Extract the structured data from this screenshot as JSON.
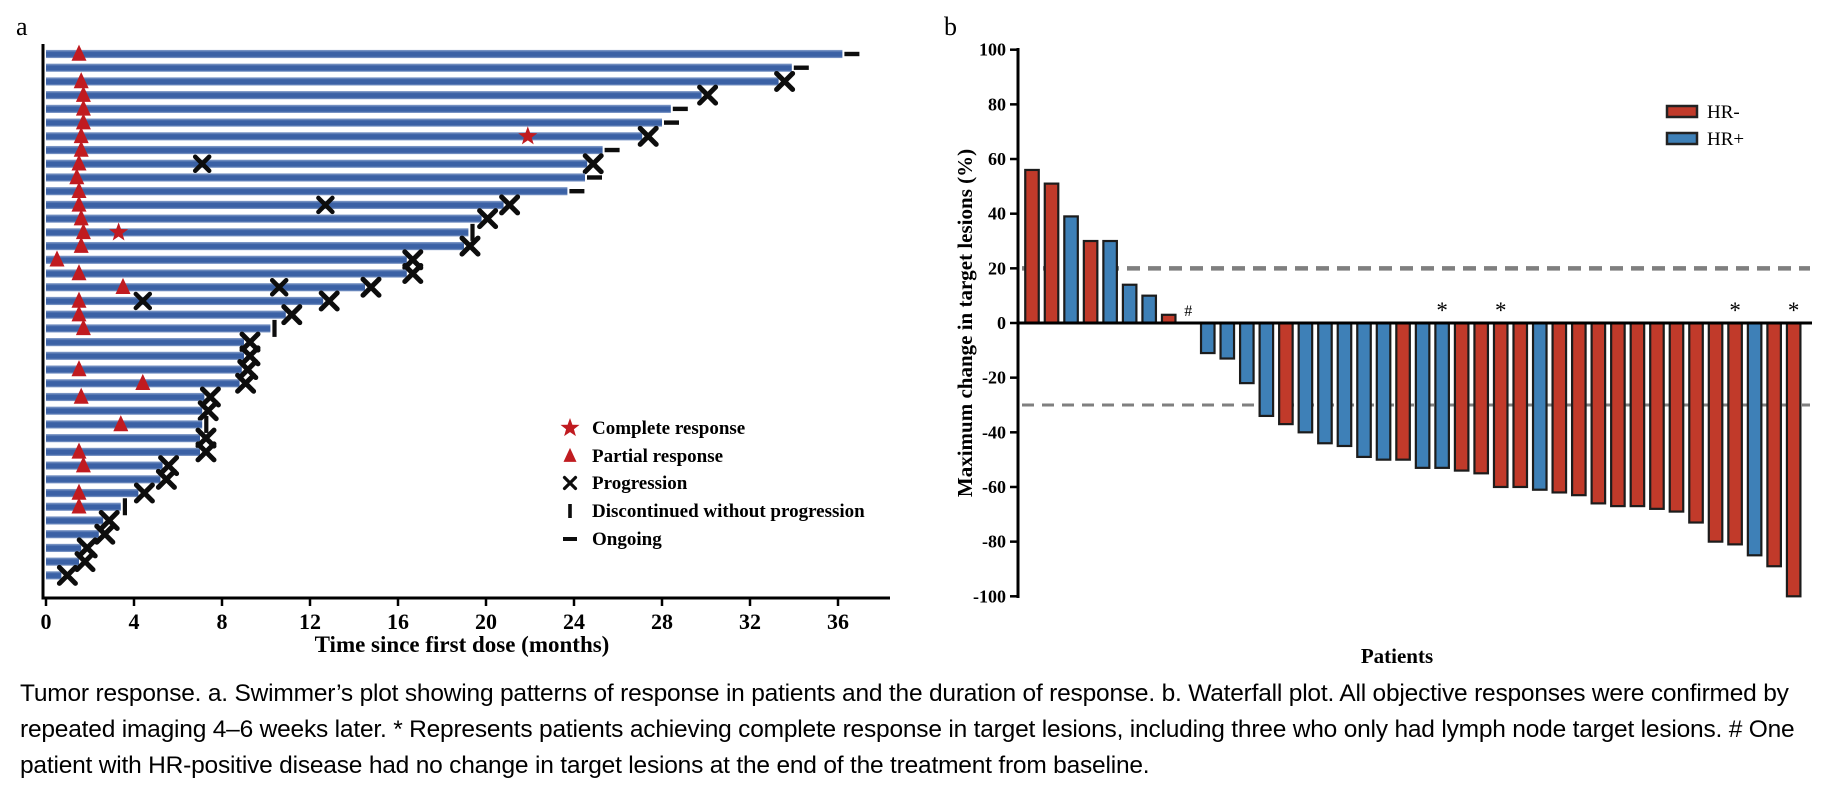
{
  "figure": {
    "panel_a_label": "a",
    "panel_b_label": "b",
    "caption": "Tumor response. a. Swimmer’s plot showing patterns of response in patients and the duration of response. b. Waterfall plot. All objective responses were confirmed by repeated imaging 4–6 weeks later. * Represents patients achieving complete response in target lesions, including three who only had lymph node target lesions. # One patient with HR-positive disease had no change in target lesions at the end of the treatment from baseline."
  },
  "colors": {
    "swimmer_bar_blue": "#3b61a5",
    "swimmer_bar_edge": "#8aa2cc",
    "marker_red": "#c01b20",
    "marker_black": "#0d0d0d",
    "hr_negative_red": "#c13a2a",
    "hr_positive_blue": "#3e80b7",
    "bar_outline": "#1c1c1c",
    "dashed_gray": "#7f7f7f",
    "axis_black": "#000000"
  },
  "chart_data": [
    {
      "type": "bar",
      "name": "swimmer-plot",
      "orientation": "horizontal",
      "xlabel": "Time since first dose (months)",
      "xlim": [
        0,
        38.4
      ],
      "xticks": [
        0,
        4,
        8,
        12,
        16,
        20,
        24,
        28,
        32,
        36
      ],
      "legend_position": "right-middle",
      "legend": [
        {
          "marker": "star",
          "label": "Complete response"
        },
        {
          "marker": "triangle",
          "label": "Partial response"
        },
        {
          "marker": "x",
          "label": "Progression"
        },
        {
          "marker": "vbar",
          "label": "Discontinued without progression"
        },
        {
          "marker": "dash",
          "label": "Ongoing"
        }
      ],
      "patients": [
        {
          "duration": 36.2,
          "end": "ongoing",
          "pr": 1.5
        },
        {
          "duration": 33.9,
          "end": "ongoing"
        },
        {
          "duration": 33.3,
          "end": "progression",
          "pr": 1.6
        },
        {
          "duration": 29.8,
          "end": "progression",
          "pr": 1.7
        },
        {
          "duration": 28.4,
          "end": "ongoing",
          "pr": 1.7
        },
        {
          "duration": 28.0,
          "end": "ongoing",
          "pr": 1.7
        },
        {
          "duration": 27.1,
          "end": "progression",
          "pr": 1.6,
          "cr": 21.9
        },
        {
          "duration": 25.3,
          "end": "ongoing",
          "pr": 1.6
        },
        {
          "duration": 24.6,
          "end": "progression",
          "pr": 1.5,
          "mid_progression": 7.1
        },
        {
          "duration": 24.5,
          "end": "ongoing",
          "pr": 1.4
        },
        {
          "duration": 23.7,
          "end": "ongoing",
          "pr": 1.5
        },
        {
          "duration": 20.8,
          "end": "progression",
          "pr": 1.5,
          "mid_progression": 12.7
        },
        {
          "duration": 19.8,
          "end": "progression",
          "pr": 1.6
        },
        {
          "duration": 19.2,
          "end": "discontinued",
          "pr": 1.7,
          "cr": 3.3
        },
        {
          "duration": 19.0,
          "end": "progression",
          "pr": 1.6
        },
        {
          "duration": 16.4,
          "end": "progression",
          "pr": 0.5
        },
        {
          "duration": 16.4,
          "end": "progression",
          "pr": 1.5
        },
        {
          "duration": 14.5,
          "end": "progression",
          "pr": 3.5,
          "mid_progression": 10.6
        },
        {
          "duration": 12.6,
          "end": "progression",
          "pr": 1.5,
          "mid_progression": 4.4
        },
        {
          "duration": 10.9,
          "end": "progression",
          "pr": 1.5
        },
        {
          "duration": 10.2,
          "end": "discontinued",
          "pr": 1.7
        },
        {
          "duration": 9.0,
          "end": "progression"
        },
        {
          "duration": 9.0,
          "end": "progression"
        },
        {
          "duration": 8.9,
          "end": "progression",
          "pr": 1.5
        },
        {
          "duration": 8.8,
          "end": "progression",
          "pr": 4.4
        },
        {
          "duration": 7.2,
          "end": "progression",
          "pr": 1.6
        },
        {
          "duration": 7.1,
          "end": "progression"
        },
        {
          "duration": 7.1,
          "end": "discontinued",
          "pr": 3.4
        },
        {
          "duration": 7.0,
          "end": "progression"
        },
        {
          "duration": 7.0,
          "end": "progression",
          "pr": 1.5
        },
        {
          "duration": 5.3,
          "end": "progression",
          "pr": 1.7
        },
        {
          "duration": 5.2,
          "end": "progression"
        },
        {
          "duration": 4.2,
          "end": "progression",
          "pr": 1.5
        },
        {
          "duration": 3.4,
          "end": "discontinued",
          "pr": 1.5
        },
        {
          "duration": 2.6,
          "end": "progression"
        },
        {
          "duration": 2.4,
          "end": "progression"
        },
        {
          "duration": 1.6,
          "end": "progression"
        },
        {
          "duration": 1.5,
          "end": "progression"
        },
        {
          "duration": 0.7,
          "end": "progression"
        }
      ]
    },
    {
      "type": "bar",
      "name": "waterfall-plot",
      "ylabel": "Maximum change in target lesions (%)",
      "xlabel": "Patients",
      "ylim": [
        -100,
        100
      ],
      "yticks": [
        100,
        80,
        60,
        40,
        20,
        0,
        -20,
        -40,
        -60,
        -80,
        -100
      ],
      "reference_lines": [
        20,
        -30
      ],
      "legend": [
        {
          "label": "HR-",
          "color": "#c13a2a"
        },
        {
          "label": "HR+",
          "color": "#3e80b7"
        }
      ],
      "patients": [
        {
          "value": 56,
          "group": "HR-"
        },
        {
          "value": 51,
          "group": "HR-"
        },
        {
          "value": 39,
          "group": "HR+"
        },
        {
          "value": 30,
          "group": "HR-"
        },
        {
          "value": 30,
          "group": "HR+"
        },
        {
          "value": 14,
          "group": "HR+"
        },
        {
          "value": 10,
          "group": "HR+"
        },
        {
          "value": 3,
          "group": "HR-"
        },
        {
          "value": 0,
          "group": "HR+",
          "annotation": "#"
        },
        {
          "value": -11,
          "group": "HR+"
        },
        {
          "value": -13,
          "group": "HR+"
        },
        {
          "value": -22,
          "group": "HR+"
        },
        {
          "value": -34,
          "group": "HR+"
        },
        {
          "value": -37,
          "group": "HR-"
        },
        {
          "value": -40,
          "group": "HR+"
        },
        {
          "value": -44,
          "group": "HR+"
        },
        {
          "value": -45,
          "group": "HR+"
        },
        {
          "value": -49,
          "group": "HR+"
        },
        {
          "value": -50,
          "group": "HR+"
        },
        {
          "value": -50,
          "group": "HR-"
        },
        {
          "value": -53,
          "group": "HR+"
        },
        {
          "value": -53,
          "group": "HR+",
          "annotation": "*"
        },
        {
          "value": -54,
          "group": "HR-"
        },
        {
          "value": -55,
          "group": "HR-"
        },
        {
          "value": -60,
          "group": "HR-",
          "annotation": "*"
        },
        {
          "value": -60,
          "group": "HR-"
        },
        {
          "value": -61,
          "group": "HR+"
        },
        {
          "value": -62,
          "group": "HR-"
        },
        {
          "value": -63,
          "group": "HR-"
        },
        {
          "value": -66,
          "group": "HR-"
        },
        {
          "value": -67,
          "group": "HR-"
        },
        {
          "value": -67,
          "group": "HR-"
        },
        {
          "value": -68,
          "group": "HR-"
        },
        {
          "value": -69,
          "group": "HR-"
        },
        {
          "value": -73,
          "group": "HR-"
        },
        {
          "value": -80,
          "group": "HR-"
        },
        {
          "value": -81,
          "group": "HR-",
          "annotation": "*"
        },
        {
          "value": -85,
          "group": "HR+"
        },
        {
          "value": -89,
          "group": "HR-"
        },
        {
          "value": -100,
          "group": "HR-",
          "annotation": "*"
        }
      ]
    }
  ]
}
